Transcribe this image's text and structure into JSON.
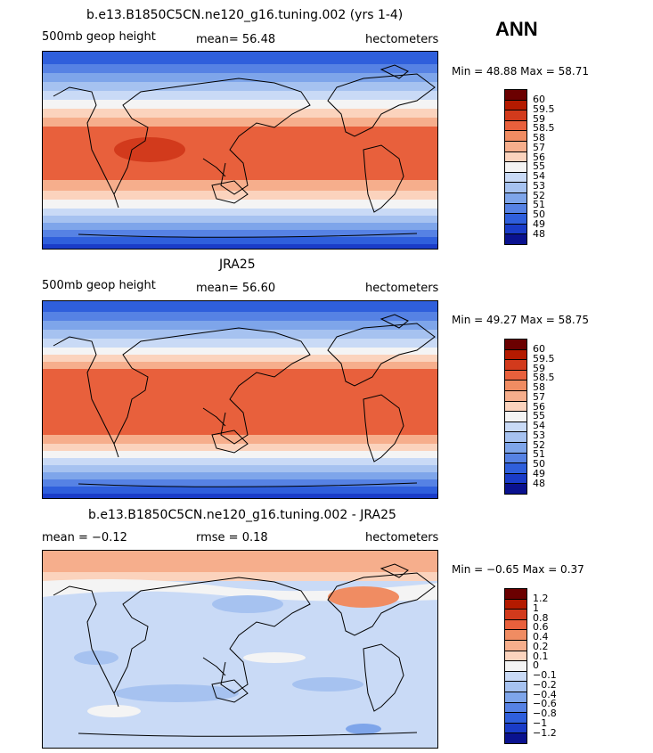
{
  "season": "ANN",
  "panels": [
    {
      "title": "b.e13.B1850C5CN.ne120_g16.tuning.002 (yrs 1-4)",
      "left_label": "500mb geop height",
      "center_label": "mean=  56.48",
      "right_label": "hectometers",
      "minmax": "Min =  48.88 Max =  58.71",
      "levels": [
        "60",
        "59.5",
        "59",
        "58.5",
        "58",
        "57",
        "56",
        "55",
        "54",
        "53",
        "52",
        "51",
        "50",
        "49",
        "48"
      ]
    },
    {
      "title": "JRA25",
      "left_label": "500mb geop height",
      "center_label": "mean=  56.60",
      "right_label": "hectometers",
      "minmax": "Min =  49.27 Max =  58.75",
      "levels": [
        "60",
        "59.5",
        "59",
        "58.5",
        "58",
        "57",
        "56",
        "55",
        "54",
        "53",
        "52",
        "51",
        "50",
        "49",
        "48"
      ]
    },
    {
      "title": "b.e13.B1850C5CN.ne120_g16.tuning.002 - JRA25",
      "left_label": "mean =  −0.12",
      "center_label": "rmse =   0.18",
      "right_label": "hectometers",
      "minmax": "Min =  −0.65 Max =   0.37",
      "levels": [
        "1.2",
        "1",
        "0.8",
        "0.6",
        "0.4",
        "0.2",
        "0.1",
        "0",
        "−0.1",
        "−0.2",
        "−0.4",
        "−0.6",
        "−0.8",
        "−1",
        "−1.2"
      ]
    }
  ],
  "colors": {
    "colorbar": [
      "#6b0000",
      "#b41a00",
      "#d23a1c",
      "#e8603c",
      "#f08c62",
      "#f6ae8c",
      "#fbd3bd",
      "#f4f4f4",
      "#c9daf6",
      "#a6c2f0",
      "#7ea5ea",
      "#5682e4",
      "#2f5fdc",
      "#1a3cc8",
      "#0a128f"
    ]
  }
}
